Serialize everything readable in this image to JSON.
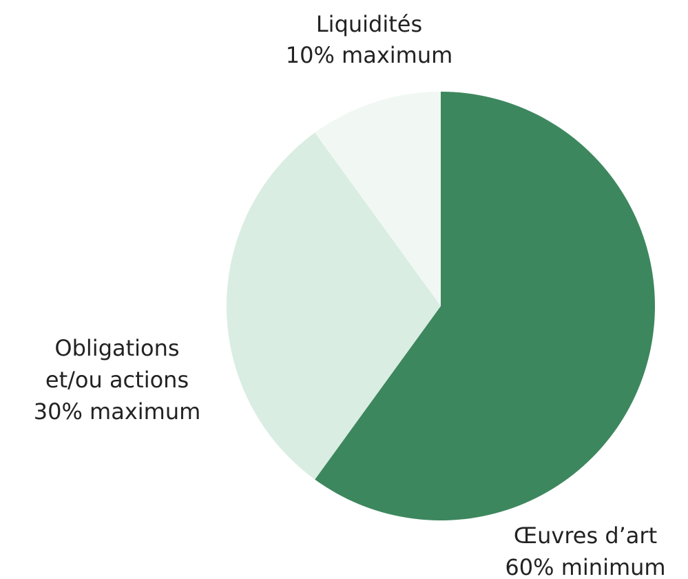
{
  "chart_data": {
    "type": "pie",
    "categories": [
      "Œuvres d’art",
      "Obligations et/ou actions",
      "Liquidités"
    ],
    "values": [
      60,
      30,
      10
    ],
    "value_labels": [
      "60% minimum",
      "30% maximum",
      "10% maximum"
    ],
    "colors": [
      "#3d875e",
      "#d9ede2",
      "#f1f8f3"
    ]
  }
}
